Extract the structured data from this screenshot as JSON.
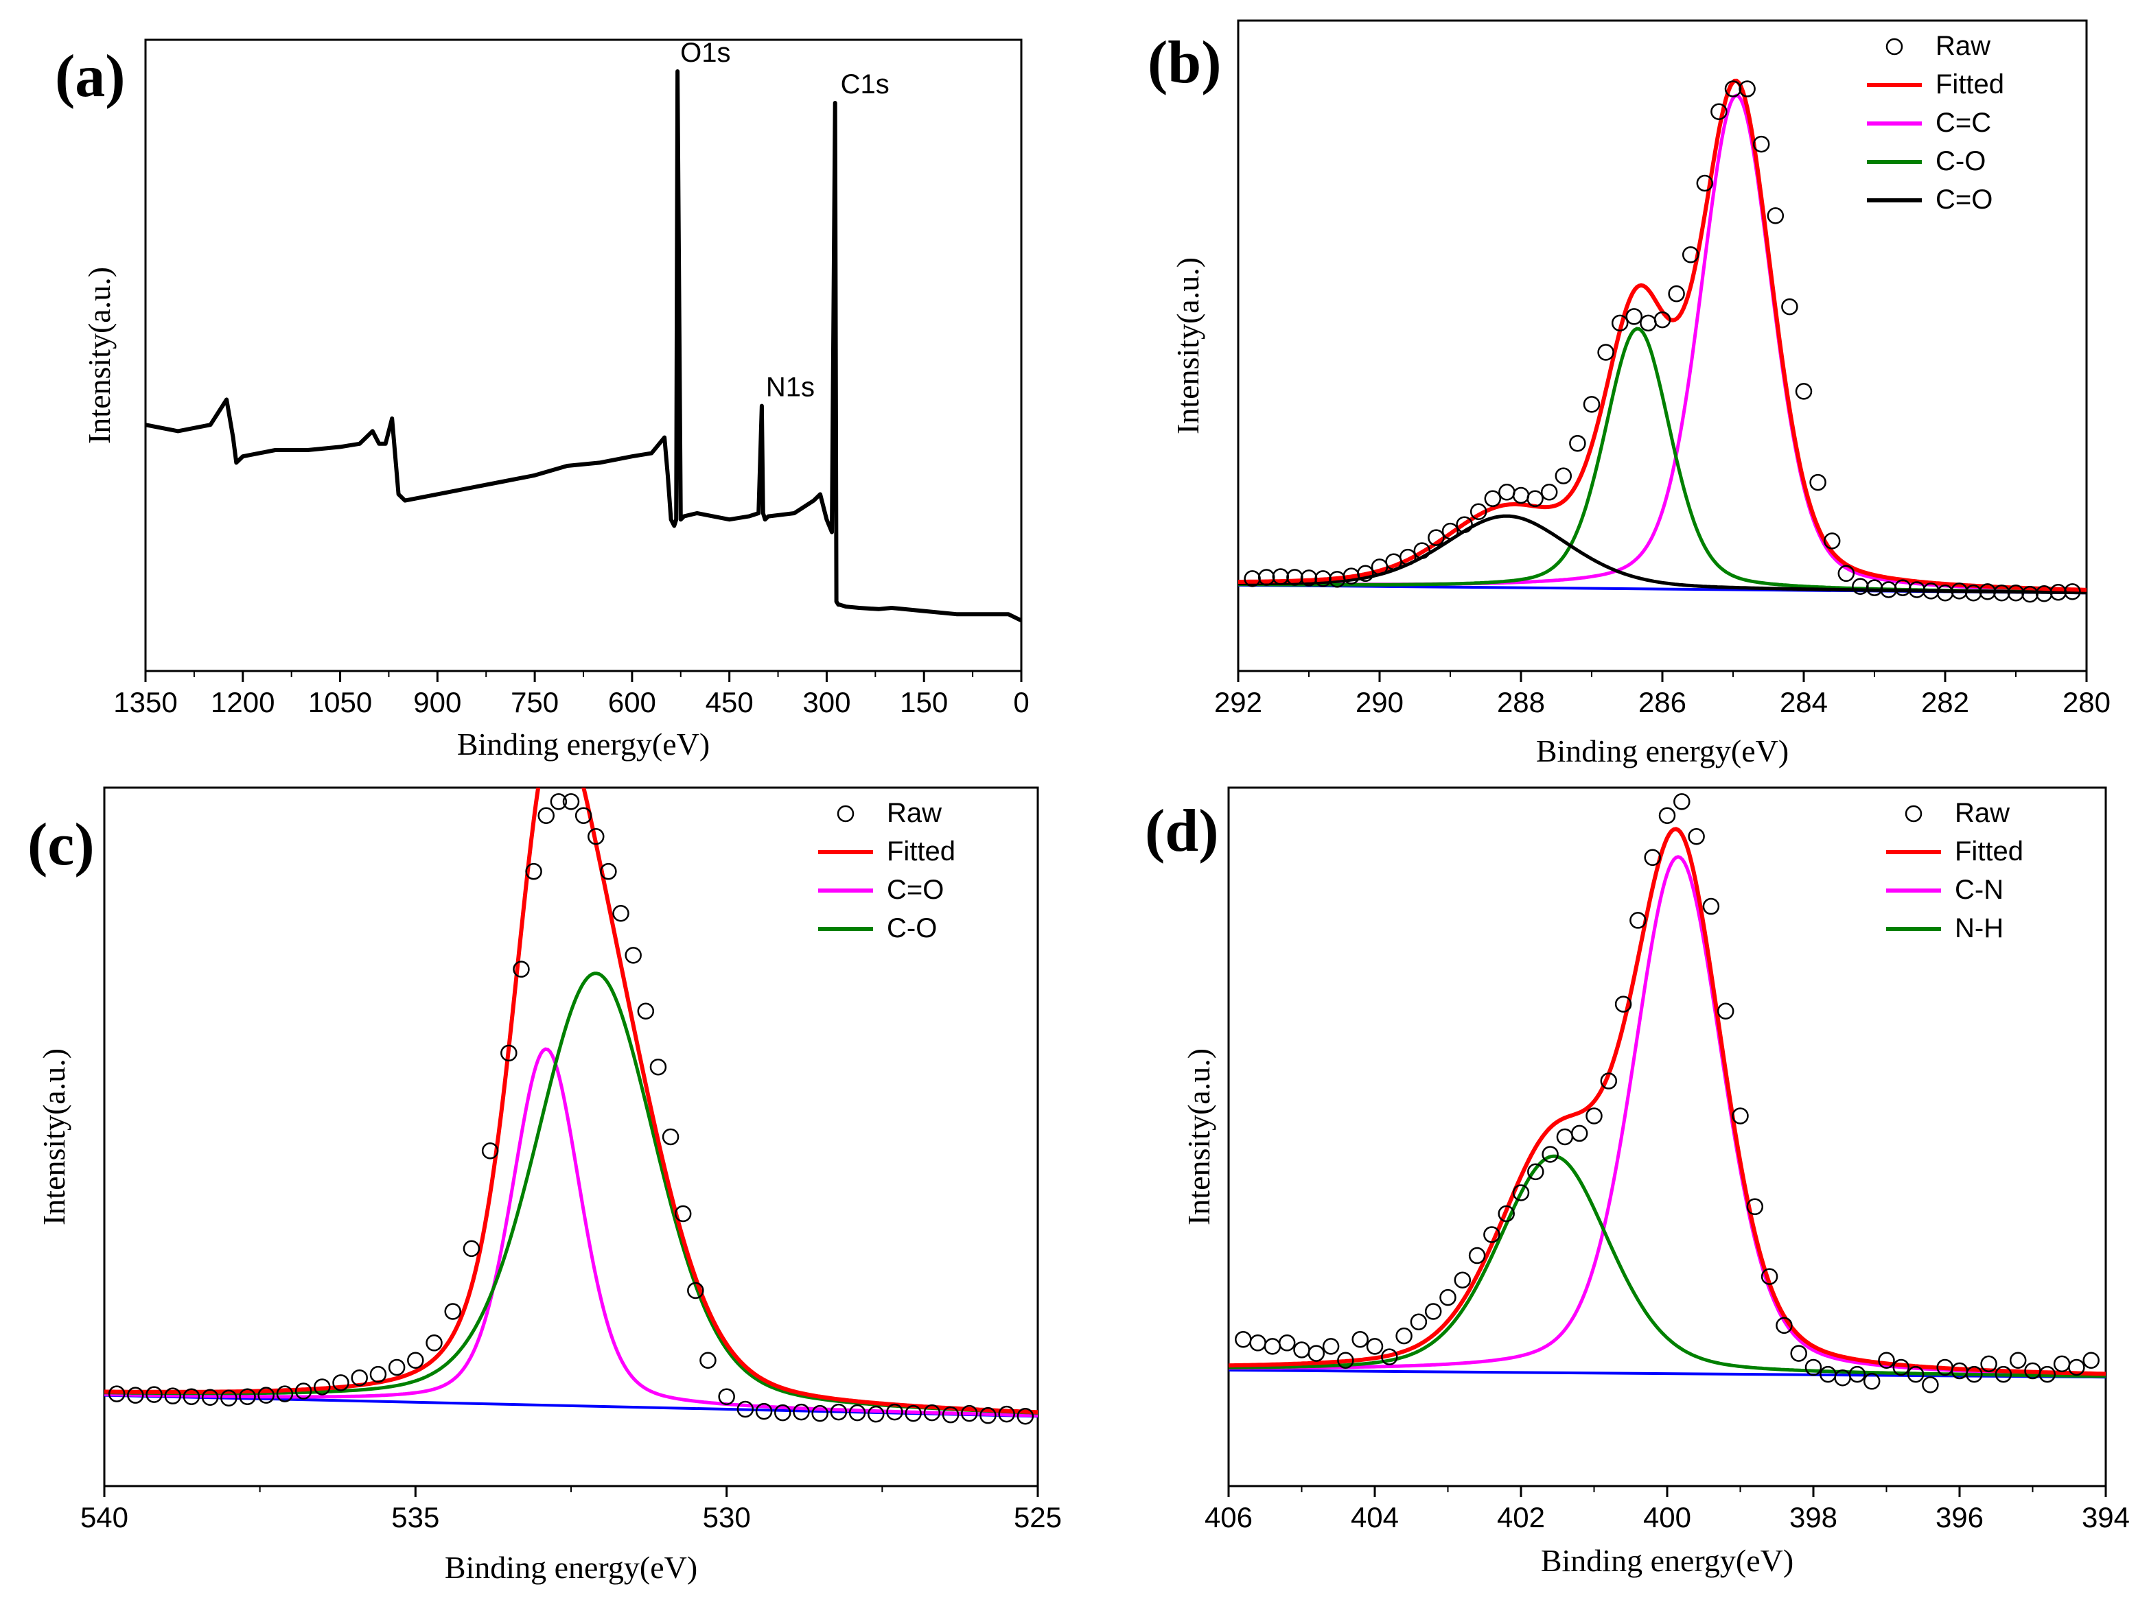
{
  "figure": {
    "panels": [
      "(a)",
      "(b)",
      "(c)",
      "(d)"
    ]
  },
  "chart_data": [
    {
      "id": "a",
      "type": "line",
      "panel_label": "(a)",
      "xlabel": "Binding energy(eV)",
      "ylabel": "Intensity(a.u.)",
      "xlim": [
        1350,
        0
      ],
      "ylim": [
        0,
        100
      ],
      "xticks": [
        "1350",
        "1200",
        "1050",
        "900",
        "750",
        "600",
        "450",
        "300",
        "150",
        "0"
      ],
      "xtick_values": [
        1350,
        1200,
        1050,
        900,
        750,
        600,
        450,
        300,
        150,
        0
      ],
      "series": [
        {
          "name": "Survey spectrum",
          "color": "#000000",
          "x": [
            1350,
            1300,
            1250,
            1225,
            1215,
            1210,
            1200,
            1150,
            1100,
            1050,
            1020,
            1000,
            990,
            980,
            970,
            960,
            950,
            900,
            850,
            800,
            750,
            700,
            650,
            600,
            570,
            550,
            545,
            540,
            535,
            532,
            530,
            525,
            520,
            500,
            450,
            420,
            405,
            400,
            398,
            395,
            390,
            350,
            320,
            310,
            300,
            292,
            287,
            285,
            282,
            280,
            270,
            250,
            220,
            200,
            150,
            100,
            50,
            20,
            0
          ],
          "y": [
            39,
            38,
            39,
            43,
            37,
            33,
            34,
            35,
            35,
            35.5,
            36,
            38,
            36,
            36,
            40,
            28,
            27,
            28,
            29,
            30,
            31,
            32.5,
            33,
            34,
            34.5,
            37,
            31,
            24,
            23,
            24,
            95,
            24,
            24.5,
            25,
            24,
            24.5,
            25,
            42,
            25,
            24,
            24.5,
            25,
            27,
            28,
            24,
            22,
            90,
            11,
            10.5,
            10.5,
            10.2,
            10,
            9.8,
            10,
            9.5,
            9,
            9,
            9,
            8
          ]
        }
      ],
      "annotations": [
        {
          "text": "O1s",
          "x": 532,
          "y": 95
        },
        {
          "text": "N1s",
          "x": 400,
          "y": 42
        },
        {
          "text": "C1s",
          "x": 285,
          "y": 90
        }
      ]
    },
    {
      "id": "b",
      "type": "line",
      "panel_label": "(b)",
      "xlabel": "Binding energy(eV)",
      "ylabel": "Intensity(a.u.)",
      "xlim": [
        292,
        280
      ],
      "ylim": [
        0,
        100
      ],
      "xticks": [
        "292",
        "290",
        "288",
        "286",
        "284",
        "282",
        "280"
      ],
      "xtick_values": [
        292,
        290,
        288,
        286,
        284,
        282,
        280
      ],
      "baseline": {
        "name": "Background",
        "color": "#0000ff",
        "x": [
          292,
          280
        ],
        "y": [
          13.2,
          12.0
        ]
      },
      "series": [
        {
          "name": "Raw",
          "style": "open-circle",
          "color": "#000000"
        },
        {
          "name": "Fitted",
          "color": "#ff0000"
        },
        {
          "name": "C=C",
          "color": "#ff00ff",
          "peak": {
            "center": 284.95,
            "fwhm": 1.2,
            "height": 76
          }
        },
        {
          "name": "C-O",
          "color": "#008000",
          "peak": {
            "center": 286.35,
            "fwhm": 1.1,
            "height": 40
          }
        },
        {
          "name": "C=O",
          "color": "#000000",
          "peak": {
            "center": 288.2,
            "fwhm": 2.1,
            "height": 11
          }
        }
      ],
      "raw_points": {
        "x": [
          291.8,
          291.6,
          291.4,
          291.2,
          291.0,
          290.8,
          290.6,
          290.4,
          290.2,
          290.0,
          289.8,
          289.6,
          289.4,
          289.2,
          289.0,
          288.8,
          288.6,
          288.4,
          288.2,
          288.0,
          287.8,
          287.6,
          287.4,
          287.2,
          287.0,
          286.8,
          286.6,
          286.4,
          286.2,
          286.0,
          285.8,
          285.6,
          285.4,
          285.2,
          285.0,
          284.8,
          284.6,
          284.4,
          284.2,
          284.0,
          283.8,
          283.6,
          283.4,
          283.2,
          283.0,
          282.8,
          282.6,
          282.4,
          282.2,
          282.0,
          281.8,
          281.6,
          281.4,
          281.2,
          281.0,
          280.8,
          280.6,
          280.4,
          280.2
        ],
        "y": [
          14.2,
          14.4,
          14.5,
          14.4,
          14.3,
          14.2,
          14.1,
          14.6,
          15.0,
          16.0,
          16.8,
          17.5,
          18.5,
          20.5,
          21.5,
          22.5,
          24.5,
          26.5,
          27.5,
          27.0,
          26.5,
          27.5,
          30.0,
          35.0,
          41.0,
          49.0,
          53.5,
          54.5,
          53.5,
          54.0,
          58.0,
          64.0,
          75.0,
          86.0,
          89.5,
          89.5,
          81.0,
          70.0,
          56.0,
          43.0,
          29.0,
          20.0,
          15.0,
          13.0,
          12.8,
          12.5,
          12.8,
          12.5,
          12.3,
          12.0,
          12.3,
          12.0,
          12.2,
          12.0,
          12.0,
          11.8,
          11.9,
          12.1,
          12.2
        ]
      },
      "legend": {
        "position": "top-right"
      }
    },
    {
      "id": "c",
      "type": "line",
      "panel_label": "(c)",
      "xlabel": "Binding energy(eV)",
      "ylabel": "Intensity(a.u.)",
      "xlim": [
        540,
        525
      ],
      "ylim": [
        0,
        100
      ],
      "xticks": [
        "540",
        "535",
        "530",
        "525"
      ],
      "xtick_values": [
        540,
        535,
        530,
        525
      ],
      "baseline": {
        "name": "Background",
        "color": "#0000ff",
        "x": [
          540,
          525
        ],
        "y": [
          13.0,
          10.0
        ]
      },
      "series": [
        {
          "name": "Raw",
          "style": "open-circle",
          "color": "#000000"
        },
        {
          "name": "Fitted",
          "color": "#ff0000"
        },
        {
          "name": "C=O",
          "color": "#ff00ff",
          "peak": {
            "center": 532.9,
            "fwhm": 1.3,
            "height": 51
          }
        },
        {
          "name": "C-O",
          "color": "#008000",
          "peak": {
            "center": 532.1,
            "fwhm": 2.3,
            "height": 62
          }
        }
      ],
      "raw_points": {
        "x": [
          539.8,
          539.5,
          539.2,
          538.9,
          538.6,
          538.3,
          538.0,
          537.7,
          537.4,
          537.1,
          536.8,
          536.5,
          536.2,
          535.9,
          535.6,
          535.3,
          535.0,
          534.7,
          534.4,
          534.1,
          533.8,
          533.5,
          533.3,
          533.1,
          532.9,
          532.7,
          532.5,
          532.3,
          532.1,
          531.9,
          531.7,
          531.5,
          531.3,
          531.1,
          530.9,
          530.7,
          530.5,
          530.3,
          530.0,
          529.7,
          529.4,
          529.1,
          528.8,
          528.5,
          528.2,
          527.9,
          527.6,
          527.3,
          527.0,
          526.7,
          526.4,
          526.1,
          525.8,
          525.5,
          525.2
        ],
        "y": [
          13.2,
          13.0,
          13.1,
          12.9,
          12.8,
          12.7,
          12.6,
          12.8,
          13.0,
          13.2,
          13.6,
          14.2,
          14.8,
          15.5,
          16.0,
          17.0,
          18.0,
          20.5,
          25.0,
          34.0,
          48.0,
          62.0,
          74.0,
          88.0,
          96.0,
          98.0,
          98.0,
          96.0,
          93.0,
          88.0,
          82.0,
          76.0,
          68.0,
          60.0,
          50.0,
          39.0,
          28.0,
          18.0,
          12.8,
          11.0,
          10.7,
          10.5,
          10.6,
          10.4,
          10.6,
          10.5,
          10.3,
          10.6,
          10.4,
          10.5,
          10.2,
          10.4,
          10.1,
          10.3,
          10.0
        ]
      },
      "legend": {
        "position": "top-right"
      }
    },
    {
      "id": "d",
      "type": "line",
      "panel_label": "(d)",
      "xlabel": "Binding energy(eV)",
      "ylabel": "Intensity(a.u.)",
      "xlim": [
        406,
        394
      ],
      "ylim": [
        0,
        100
      ],
      "xticks": [
        "406",
        "404",
        "402",
        "400",
        "398",
        "396",
        "394"
      ],
      "xtick_values": [
        406,
        404,
        402,
        400,
        398,
        396,
        394
      ],
      "baseline": {
        "name": "Background",
        "color": "#0000ff",
        "x": [
          406,
          394
        ],
        "y": [
          16.6,
          15.6
        ]
      },
      "series": [
        {
          "name": "Raw",
          "style": "open-circle",
          "color": "#000000"
        },
        {
          "name": "Fitted",
          "color": "#ff0000"
        },
        {
          "name": "C-N",
          "color": "#ff00ff",
          "peak": {
            "center": 399.85,
            "fwhm": 1.45,
            "height": 74
          }
        },
        {
          "name": "N-H",
          "color": "#008000",
          "peak": {
            "center": 401.55,
            "fwhm": 1.8,
            "height": 31
          }
        }
      ],
      "raw_points": {
        "x": [
          405.8,
          405.6,
          405.4,
          405.2,
          405.0,
          404.8,
          404.6,
          404.4,
          404.2,
          404.0,
          403.8,
          403.6,
          403.4,
          403.2,
          403.0,
          402.8,
          402.6,
          402.4,
          402.2,
          402.0,
          401.8,
          401.6,
          401.4,
          401.2,
          401.0,
          400.8,
          400.6,
          400.4,
          400.2,
          400.0,
          399.8,
          399.6,
          399.4,
          399.2,
          399.0,
          398.8,
          398.6,
          398.4,
          398.2,
          398.0,
          397.8,
          397.6,
          397.4,
          397.2,
          397.0,
          396.8,
          396.6,
          396.4,
          396.2,
          396.0,
          395.8,
          395.6,
          395.4,
          395.2,
          395.0,
          394.8,
          394.6,
          394.4,
          394.2
        ],
        "y": [
          21.0,
          20.5,
          20.0,
          20.5,
          19.5,
          19.0,
          20.0,
          18.0,
          21.0,
          20.0,
          18.5,
          21.5,
          23.5,
          25.0,
          27.0,
          29.5,
          33.0,
          36.0,
          39.0,
          42.0,
          45.0,
          47.5,
          50.0,
          50.5,
          53.0,
          58.0,
          69.0,
          81.0,
          90.0,
          96.0,
          98.0,
          93.0,
          83.0,
          68.0,
          53.0,
          40.0,
          30.0,
          23.0,
          19.0,
          17.0,
          16.0,
          15.5,
          16.0,
          15.0,
          18.0,
          17.0,
          16.0,
          14.5,
          17.0,
          16.5,
          16.0,
          17.5,
          16.0,
          18.0,
          16.5,
          16.0,
          17.5,
          17.0,
          18.0
        ]
      },
      "legend": {
        "position": "top-right"
      }
    }
  ]
}
